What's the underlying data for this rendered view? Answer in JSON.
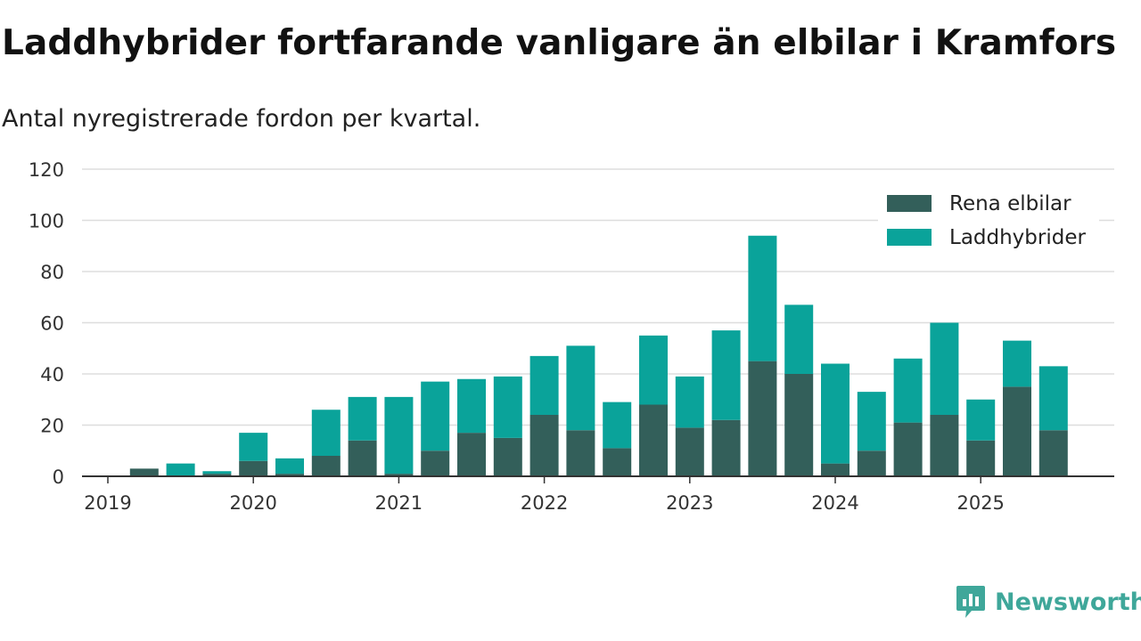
{
  "title": "Laddhybrider fortfarande vanligare än elbilar i Kramfors",
  "subtitle": "Antal nyregistrerade fordon per kvartal.",
  "brand": "Newsworthy",
  "colors": {
    "elbilar": "#335f5a",
    "laddhybrider": "#0aa39a",
    "grid": "#dddddd",
    "axis": "#333333"
  },
  "chart_data": {
    "type": "bar",
    "stacked": true,
    "title": "Laddhybrider fortfarande vanligare än elbilar i Kramfors",
    "subtitle": "Antal nyregistrerade fordon per kvartal.",
    "xlabel": "",
    "ylabel": "",
    "ylim": [
      0,
      120
    ],
    "yticks": [
      0,
      20,
      40,
      60,
      80,
      100,
      120
    ],
    "xtick_labels": [
      "2019",
      "2020",
      "2021",
      "2022",
      "2023",
      "2024",
      "2025"
    ],
    "legend_position": "top-right",
    "categories": [
      "2019 Q1",
      "2019 Q2",
      "2019 Q3",
      "2019 Q4",
      "2020 Q1",
      "2020 Q2",
      "2020 Q3",
      "2020 Q4",
      "2021 Q1",
      "2021 Q2",
      "2021 Q3",
      "2021 Q4",
      "2022 Q1",
      "2022 Q2",
      "2022 Q3",
      "2022 Q4",
      "2023 Q1",
      "2023 Q2",
      "2023 Q3",
      "2023 Q4",
      "2024 Q1",
      "2024 Q2",
      "2024 Q3",
      "2024 Q4",
      "2025 Q1",
      "2025 Q2",
      "2025 Q3"
    ],
    "series": [
      {
        "name": "Rena elbilar",
        "values": [
          0,
          3,
          0,
          1,
          6,
          1,
          8,
          14,
          1,
          10,
          17,
          15,
          24,
          18,
          11,
          28,
          19,
          22,
          45,
          40,
          5,
          10,
          21,
          24,
          14,
          35,
          18
        ]
      },
      {
        "name": "Laddhybrider",
        "values": [
          0,
          0,
          5,
          1,
          11,
          6,
          18,
          17,
          30,
          27,
          21,
          24,
          23,
          33,
          18,
          27,
          20,
          35,
          49,
          27,
          39,
          23,
          25,
          36,
          16,
          18,
          25
        ]
      }
    ]
  }
}
